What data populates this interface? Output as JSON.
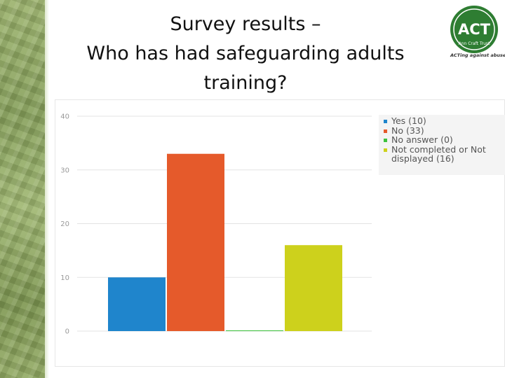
{
  "slide": {
    "title_lines": [
      "Survey results –",
      "Who has had safeguarding adults",
      "training?"
    ]
  },
  "logo": {
    "text": "ACT",
    "ring_text": "Ann Craft Trust",
    "tagline": "ACTing against abuse",
    "color": "#2e7d32"
  },
  "chart_data": {
    "type": "bar",
    "categories": [
      "Yes",
      "No",
      "No answer",
      "Not completed or Not displayed"
    ],
    "values": [
      10,
      33,
      0,
      16
    ],
    "colors": [
      "#1f85cc",
      "#e55a2b",
      "#3cc13c",
      "#cdd11c"
    ],
    "legend": [
      "Yes (10)",
      "No (33)",
      "No answer (0)",
      "Not completed or Not displayed (16)"
    ],
    "legend_position": "top-right",
    "title": "",
    "xlabel": "",
    "ylabel": "",
    "ylim": [
      0,
      40
    ],
    "yticks": [
      0,
      10,
      20,
      30,
      40
    ],
    "grid": true
  }
}
